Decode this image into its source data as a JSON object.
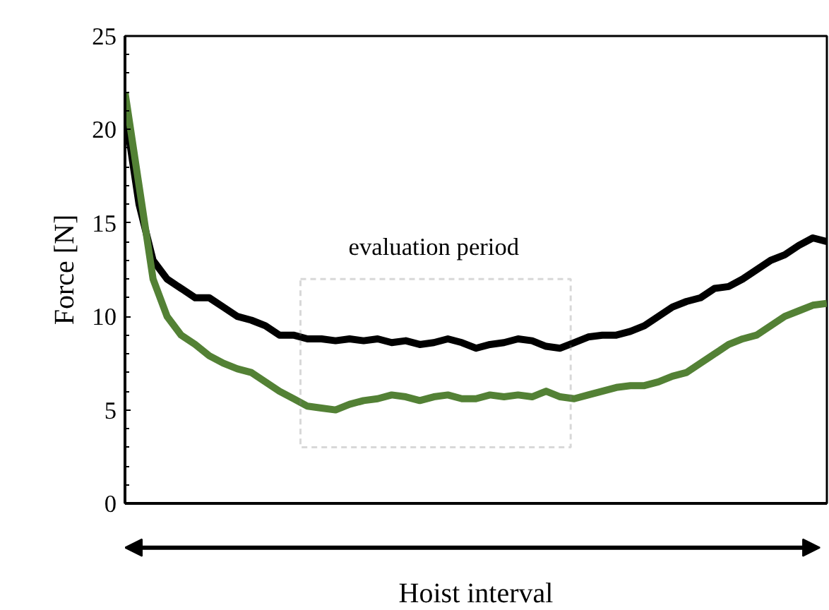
{
  "chart_data": {
    "type": "line",
    "xlabel": "Hoist interval",
    "ylabel": "Force [N]",
    "categories": [
      null,
      null,
      null,
      null,
      null,
      null,
      null,
      null,
      null,
      null,
      null,
      null,
      null,
      null,
      null,
      null,
      null,
      null,
      null,
      null,
      null,
      null,
      null,
      null,
      null,
      null,
      null,
      null,
      null,
      null,
      null,
      null,
      null,
      null,
      null,
      null,
      null,
      null,
      null,
      null,
      null,
      null,
      null,
      null,
      null,
      null,
      null,
      null,
      null,
      null,
      null
    ],
    "series": [
      {
        "color": "#000000",
        "values": [
          21,
          16,
          13,
          12,
          11.5,
          11,
          11,
          10.5,
          10,
          9.8,
          9.5,
          9,
          9,
          8.8,
          8.8,
          8.7,
          8.8,
          8.7,
          8.8,
          8.6,
          8.7,
          8.5,
          8.6,
          8.8,
          8.6,
          8.3,
          8.5,
          8.6,
          8.8,
          8.7,
          8.4,
          8.3,
          8.6,
          8.9,
          9,
          9,
          9.2,
          9.5,
          10,
          10.5,
          10.8,
          11,
          11.5,
          11.6,
          12,
          12.5,
          13,
          13.3,
          13.8,
          14.2,
          14
        ]
      },
      {
        "color": "#538135",
        "values": [
          22,
          17,
          12,
          10,
          9,
          8.5,
          7.9,
          7.5,
          7.2,
          7,
          6.5,
          6,
          5.6,
          5.2,
          5.1,
          5,
          5.3,
          5.5,
          5.6,
          5.8,
          5.7,
          5.5,
          5.7,
          5.8,
          5.6,
          5.6,
          5.8,
          5.7,
          5.8,
          5.7,
          6,
          5.7,
          5.6,
          5.8,
          6,
          6.2,
          6.3,
          6.3,
          6.5,
          6.8,
          7,
          7.5,
          8,
          8.5,
          8.8,
          9,
          9.5,
          10,
          10.3,
          10.6,
          10.7
        ]
      }
    ],
    "annotations": [
      "evaluation period"
    ],
    "ylim": [
      0,
      25
    ],
    "yticks": [
      0,
      5,
      10,
      15,
      20,
      25
    ],
    "tick_labels": "y",
    "grid": false,
    "line_style": "solid",
    "marker": "none"
  }
}
